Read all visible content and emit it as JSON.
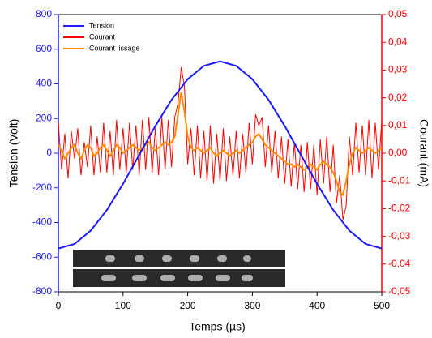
{
  "chart_data": {
    "type": "line",
    "xlabel": "Temps (µs)",
    "ylabel": "Tension (Volt)",
    "y2label": "Courant (mA)",
    "xlim": [
      0,
      500
    ],
    "xticks": [
      0,
      100,
      200,
      300,
      400,
      500
    ],
    "ylim": [
      -800,
      800
    ],
    "yticks": [
      -800,
      -600,
      -400,
      -200,
      0,
      200,
      400,
      600,
      800
    ],
    "y2lim": [
      -0.05,
      0.05
    ],
    "y2ticks": [
      {
        "value": -0.05,
        "label": "-0,05"
      },
      {
        "value": -0.04,
        "label": "-0,04"
      },
      {
        "value": -0.03,
        "label": "-0,03"
      },
      {
        "value": -0.02,
        "label": "-0,02"
      },
      {
        "value": -0.01,
        "label": "-0,01"
      },
      {
        "value": 0,
        "label": "0,00"
      },
      {
        "value": 0.01,
        "label": "0,01"
      },
      {
        "value": 0.02,
        "label": "0,02"
      },
      {
        "value": 0.03,
        "label": "0,03"
      },
      {
        "value": 0.04,
        "label": "0,04"
      },
      {
        "value": 0.05,
        "label": "0,05"
      }
    ],
    "legend": "upper left",
    "series": [
      {
        "name": "Tension",
        "color": "#1a1aff",
        "axis": "y",
        "x": [
          0,
          25,
          50,
          75,
          100,
          125,
          150,
          175,
          200,
          225,
          250,
          275,
          300,
          325,
          350,
          375,
          400,
          425,
          450,
          475,
          500
        ],
        "values": [
          -550,
          -524,
          -447,
          -328,
          -177,
          -10,
          157,
          308,
          427,
          504,
          530,
          504,
          427,
          308,
          157,
          -10,
          -177,
          -328,
          -447,
          -524,
          -550
        ]
      },
      {
        "name": "Courant",
        "color": "#ff0000",
        "axis": "y2",
        "x": [
          0,
          5,
          10,
          15,
          20,
          25,
          30,
          35,
          40,
          45,
          50,
          55,
          60,
          65,
          70,
          75,
          80,
          85,
          90,
          95,
          100,
          105,
          110,
          115,
          120,
          125,
          130,
          135,
          140,
          145,
          150,
          155,
          160,
          165,
          170,
          175,
          180,
          185,
          190,
          195,
          200,
          205,
          210,
          215,
          220,
          225,
          230,
          235,
          240,
          245,
          250,
          255,
          260,
          265,
          270,
          275,
          280,
          285,
          290,
          295,
          300,
          305,
          310,
          315,
          320,
          325,
          330,
          335,
          340,
          345,
          350,
          355,
          360,
          365,
          370,
          375,
          380,
          385,
          390,
          395,
          400,
          405,
          410,
          415,
          420,
          425,
          430,
          435,
          440,
          445,
          450,
          455,
          460,
          465,
          470,
          475,
          480,
          485,
          490,
          495,
          500
        ],
        "values": [
          0.011,
          -0.006,
          0.007,
          -0.009,
          0.008,
          -0.002,
          0.009,
          -0.008,
          0.004,
          -0.005,
          0.01,
          -0.008,
          0.006,
          -0.007,
          0.011,
          -0.007,
          0.008,
          -0.008,
          0.012,
          -0.006,
          0.009,
          -0.007,
          0.011,
          -0.006,
          0.01,
          -0.008,
          0.012,
          -0.006,
          0.013,
          -0.007,
          0.009,
          -0.008,
          0.013,
          -0.006,
          0.012,
          -0.005,
          0.013,
          0.018,
          0.031,
          0.024,
          -0.004,
          0.009,
          -0.008,
          0.01,
          -0.009,
          0.008,
          -0.01,
          0.01,
          -0.011,
          0.007,
          -0.01,
          0.009,
          -0.01,
          0.006,
          -0.008,
          0.008,
          -0.009,
          0.007,
          -0.007,
          0.011,
          -0.004,
          0.014,
          0.01,
          0.013,
          -0.005,
          0.01,
          -0.007,
          0.008,
          -0.009,
          0.006,
          -0.011,
          0.005,
          -0.012,
          0.004,
          -0.013,
          0.003,
          -0.014,
          0.004,
          -0.013,
          0.003,
          -0.015,
          0.005,
          -0.011,
          0.006,
          -0.014,
          0.003,
          -0.018,
          -0.008,
          -0.024,
          -0.019,
          0.006,
          -0.008,
          0.011,
          -0.007,
          0.01,
          -0.008,
          0.012,
          -0.009,
          0.011,
          -0.006,
          0.012
        ]
      },
      {
        "name": "Courant lissage",
        "color": "#ff8c00",
        "axis": "y2",
        "x": [
          0,
          5,
          10,
          15,
          20,
          25,
          30,
          35,
          40,
          45,
          50,
          55,
          60,
          65,
          70,
          75,
          80,
          85,
          90,
          95,
          100,
          105,
          110,
          115,
          120,
          125,
          130,
          135,
          140,
          145,
          150,
          155,
          160,
          165,
          170,
          175,
          180,
          185,
          190,
          195,
          200,
          205,
          210,
          215,
          220,
          225,
          230,
          235,
          240,
          245,
          250,
          255,
          260,
          265,
          270,
          275,
          280,
          285,
          290,
          295,
          300,
          305,
          310,
          315,
          320,
          325,
          330,
          335,
          340,
          345,
          350,
          355,
          360,
          365,
          370,
          375,
          380,
          385,
          390,
          395,
          400,
          405,
          410,
          415,
          420,
          425,
          430,
          435,
          440,
          445,
          450,
          455,
          460,
          465,
          470,
          475,
          480,
          485,
          490,
          495,
          500
        ],
        "values": [
          0.003,
          0.001,
          -0.002,
          0.0,
          0.002,
          0.003,
          0.0,
          -0.002,
          0.001,
          0.003,
          0.002,
          -0.001,
          0.0,
          0.002,
          0.003,
          0.001,
          -0.001,
          0.001,
          0.003,
          0.002,
          0.0,
          0.001,
          0.002,
          0.003,
          0.002,
          0.001,
          0.002,
          0.003,
          0.004,
          0.002,
          0.001,
          0.002,
          0.003,
          0.004,
          0.003,
          0.004,
          0.006,
          0.014,
          0.022,
          0.015,
          0.006,
          0.002,
          0.001,
          0.002,
          0.001,
          0.0,
          0.001,
          0.002,
          0.0,
          -0.001,
          0.0,
          0.001,
          0.0,
          -0.001,
          0.0,
          0.001,
          0.0,
          0.001,
          0.002,
          0.003,
          0.004,
          0.006,
          0.007,
          0.005,
          0.003,
          0.002,
          0.001,
          0.0,
          -0.001,
          -0.002,
          -0.003,
          -0.004,
          -0.004,
          -0.005,
          -0.004,
          -0.005,
          -0.006,
          -0.005,
          -0.004,
          -0.005,
          -0.006,
          -0.004,
          -0.003,
          -0.004,
          -0.005,
          -0.007,
          -0.01,
          -0.014,
          -0.015,
          -0.01,
          -0.004,
          0.0,
          0.002,
          0.001,
          0.0,
          0.001,
          0.002,
          0.001,
          0.0,
          0.001,
          0.002
        ]
      }
    ]
  }
}
